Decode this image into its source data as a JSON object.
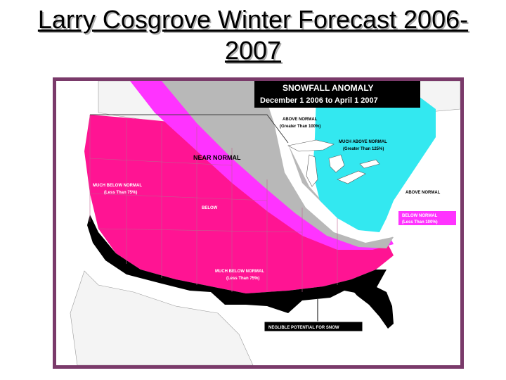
{
  "slide": {
    "title_line1": "Larry Cosgrove Winter Forecast 2006-",
    "title_line2": "2007"
  },
  "map": {
    "header_line1": "SNOWFALL ANOMALY",
    "header_line2": "December 1 2006 to April 1 2007",
    "colors": {
      "much_below_normal": "#ff1493",
      "below_normal": "#ff33ff",
      "near_normal": "#b8b8b8",
      "above_normal": "#ffffff",
      "much_above_normal": "#33e8f0",
      "negligible": "#000000",
      "frame": "#7a3a6a",
      "land_outside": "#f4f4f4",
      "water": "#ffffff"
    },
    "labels": {
      "near_normal": "NEAR NORMAL",
      "much_below_1": "MUCH BELOW NORMAL",
      "much_below_1_sub": "(Less Than 75%)",
      "below": "BELOW",
      "much_below_2": "MUCH BELOW NORMAL",
      "much_below_2_sub": "(Less Than 75%)",
      "above_normal": "ABOVE NORMAL",
      "above_normal_sub": "(Greater Than 100%)",
      "much_above": "MUCH ABOVE NORMAL",
      "much_above_sub": "(Greater Than 125%)",
      "above_normal_east": "ABOVE NORMAL",
      "below_normal_east": "BELOW NORMAL",
      "below_normal_east_sub": "(Less Than 100%)",
      "negligible": "NEGLIBLE POTENTIAL FOR SNOW"
    }
  }
}
